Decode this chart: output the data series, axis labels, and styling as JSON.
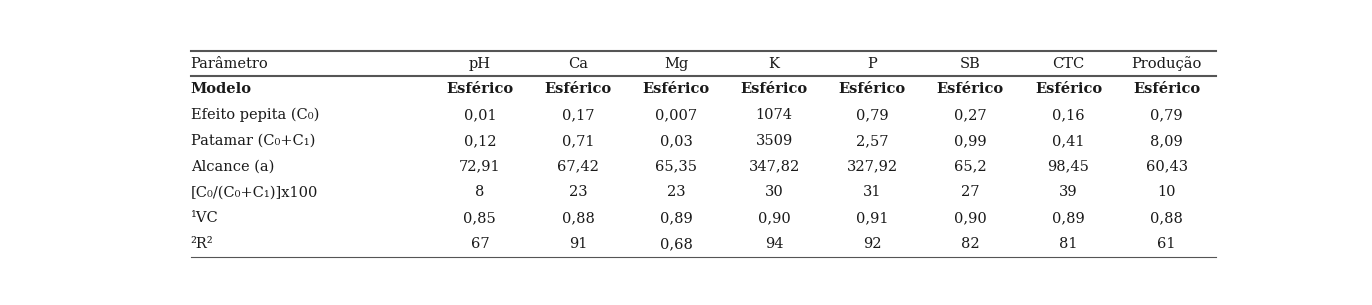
{
  "header": [
    "Parâmetro",
    "pH",
    "Ca",
    "Mg",
    "K",
    "P",
    "SB",
    "CTC",
    "Produção"
  ],
  "rows": [
    [
      "Modelo",
      "Esférico",
      "Esférico",
      "Esférico",
      "Esférico",
      "Esférico",
      "Esférico",
      "Esférico",
      "Esférico"
    ],
    [
      "Efeito pepita (C₀)",
      "0,01",
      "0,17",
      "0,007",
      "1074",
      "0,79",
      "0,27",
      "0,16",
      "0,79"
    ],
    [
      "Patamar (C₀+C₁)",
      "0,12",
      "0,71",
      "0,03",
      "3509",
      "2,57",
      "0,99",
      "0,41",
      "8,09"
    ],
    [
      "Alcance (a)",
      "72,91",
      "67,42",
      "65,35",
      "347,82",
      "327,92",
      "65,2",
      "98,45",
      "60,43"
    ],
    [
      "[C₀/(C₀+C₁)]x100",
      "8",
      "23",
      "23",
      "30",
      "31",
      "27",
      "39",
      "10"
    ],
    [
      "¹VC",
      "0,85",
      "0,88",
      "0,89",
      "0,90",
      "0,91",
      "0,90",
      "0,89",
      "0,88"
    ],
    [
      "²R²",
      "67",
      "91",
      "0,68",
      "94",
      "92",
      "82",
      "81",
      "61"
    ]
  ],
  "bg_color": "#ffffff",
  "text_color": "#1a1a1a",
  "line_color": "#555555",
  "font_size": 10.5,
  "bold_rows": [
    0
  ],
  "col_weights": [
    0.235,
    0.096,
    0.096,
    0.096,
    0.096,
    0.096,
    0.096,
    0.096,
    0.096
  ]
}
